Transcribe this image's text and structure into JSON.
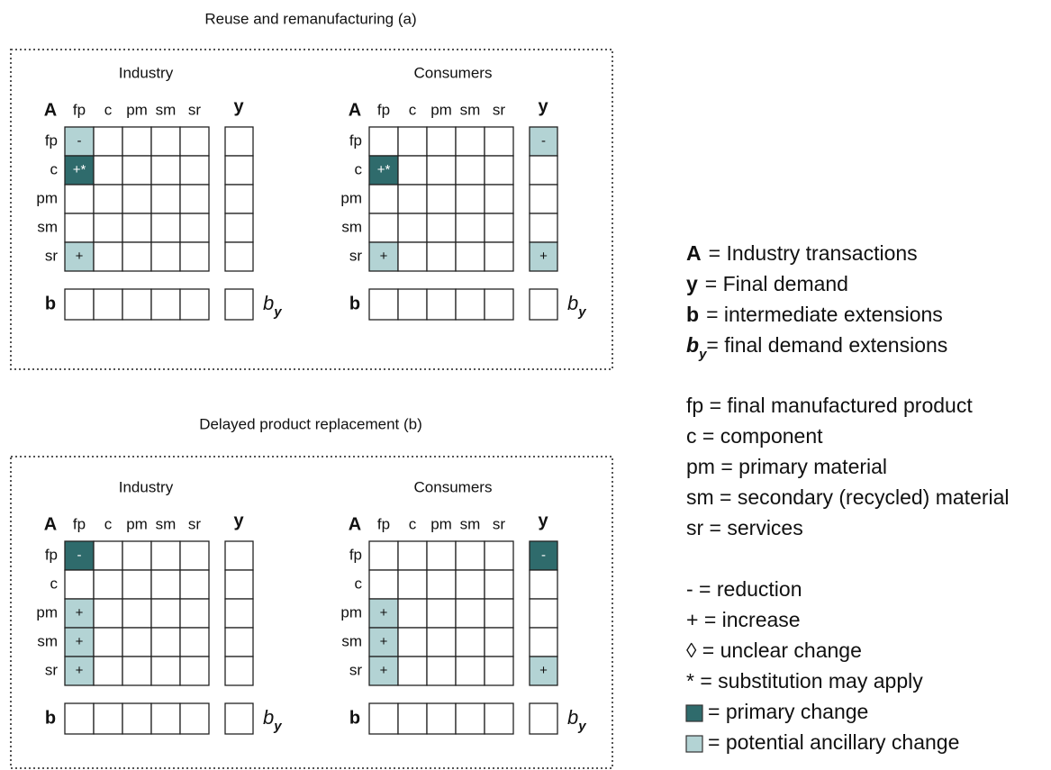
{
  "sectors": [
    "fp",
    "c",
    "pm",
    "sm",
    "sr"
  ],
  "matrix_labels": {
    "corner": "A",
    "demand": "y",
    "extension": "b",
    "final_extension": "b",
    "final_extension_sub": "y"
  },
  "panels": [
    {
      "title": "Reuse and remanufacturing (a)",
      "matrices": [
        {
          "label": "Industry",
          "cells": [
            [
              {
                "text": "-",
                "color": "#b3d3d4"
              },
              null,
              null,
              null,
              null
            ],
            [
              {
                "text": "+*",
                "color": "#2f6b6c"
              },
              null,
              null,
              null,
              null
            ],
            [
              null,
              null,
              null,
              null,
              null
            ],
            [
              null,
              null,
              null,
              null,
              null
            ],
            [
              {
                "text": "+",
                "color": "#b3d3d4"
              },
              null,
              null,
              null,
              null
            ]
          ],
          "demand": [
            null,
            null,
            null,
            null,
            null
          ]
        },
        {
          "label": "Consumers",
          "cells": [
            [
              null,
              null,
              null,
              null,
              null
            ],
            [
              {
                "text": "+*",
                "color": "#2f6b6c"
              },
              null,
              null,
              null,
              null
            ],
            [
              null,
              null,
              null,
              null,
              null
            ],
            [
              null,
              null,
              null,
              null,
              null
            ],
            [
              {
                "text": "+",
                "color": "#b3d3d4"
              },
              null,
              null,
              null,
              null
            ]
          ],
          "demand": [
            {
              "text": "-",
              "color": "#b3d3d4"
            },
            null,
            null,
            null,
            {
              "text": "+",
              "color": "#b3d3d4"
            }
          ]
        }
      ]
    },
    {
      "title": "Delayed product replacement (b)",
      "matrices": [
        {
          "label": "Industry",
          "cells": [
            [
              {
                "text": "-",
                "color": "#2f6b6c"
              },
              null,
              null,
              null,
              null
            ],
            [
              null,
              null,
              null,
              null,
              null
            ],
            [
              {
                "text": "+",
                "color": "#b3d3d4"
              },
              null,
              null,
              null,
              null
            ],
            [
              {
                "text": "+",
                "color": "#b3d3d4"
              },
              null,
              null,
              null,
              null
            ],
            [
              {
                "text": "+",
                "color": "#b3d3d4"
              },
              null,
              null,
              null,
              null
            ]
          ],
          "demand": [
            null,
            null,
            null,
            null,
            null
          ]
        },
        {
          "label": "Consumers",
          "cells": [
            [
              null,
              null,
              null,
              null,
              null
            ],
            [
              null,
              null,
              null,
              null,
              null
            ],
            [
              {
                "text": "+",
                "color": "#b3d3d4"
              },
              null,
              null,
              null,
              null
            ],
            [
              {
                "text": "+",
                "color": "#b3d3d4"
              },
              null,
              null,
              null,
              null
            ],
            [
              {
                "text": "+",
                "color": "#b3d3d4"
              },
              null,
              null,
              null,
              null
            ]
          ],
          "demand": [
            {
              "text": "-",
              "color": "#2f6b6c"
            },
            null,
            null,
            null,
            {
              "text": "+",
              "color": "#b3d3d4"
            }
          ]
        }
      ]
    }
  ],
  "legend": {
    "groups": [
      [
        {
          "symbol": "A",
          "text": "= Industry transactions"
        },
        {
          "symbol": "y",
          "text": "= Final demand"
        },
        {
          "symbol": "b",
          "text": "= intermediate extensions"
        },
        {
          "symbol": "b",
          "sub": "y",
          "text": "= final demand extensions"
        }
      ],
      [
        {
          "text": "fp = final manufactured product"
        },
        {
          "text": "c = component"
        },
        {
          "text": "pm = primary material"
        },
        {
          "text": "sm = secondary (recycled) material"
        },
        {
          "text": "sr = services"
        }
      ],
      [
        {
          "text": "- = reduction"
        },
        {
          "text": "+ = increase"
        },
        {
          "text": "◊ = unclear change"
        },
        {
          "text": "* = substitution may apply"
        },
        {
          "color": "#2f6b6c",
          "text": "= primary change"
        },
        {
          "color": "#b3d3d4",
          "text": "= potential ancillary change"
        }
      ]
    ]
  }
}
